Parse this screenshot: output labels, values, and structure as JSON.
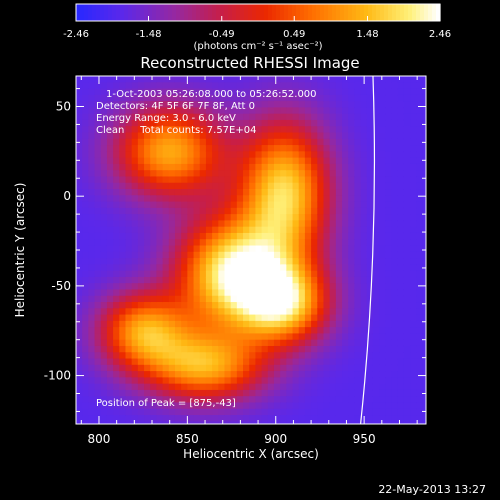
{
  "chart_data": {
    "type": "heatmap",
    "title": "Reconstructed RHESSI Image",
    "annotations": [
      "1-Oct-2003 05:26:08.000 to 05:26:52.000",
      "Detectors: 4F 5F 6F 7F 8F, Att 0",
      "Energy Range: 3.0 - 6.0 keV",
      "Clean     Total counts: 7.57E+04"
    ],
    "peak_label": "Position of Peak = [875,-43]",
    "peak": [
      875,
      -43
    ],
    "xlabel": "Heliocentric X (arcsec)",
    "ylabel": "Heliocentric Y (arcsec)",
    "xlim": [
      787,
      985
    ],
    "ylim": [
      -127,
      67
    ],
    "xticks": [
      800,
      850,
      900,
      950
    ],
    "yticks": [
      50,
      0,
      -50,
      -100
    ],
    "colorbar": {
      "range": [
        -2.46,
        2.46
      ],
      "ticks": [
        "-2.46",
        "-1.48",
        "-0.49",
        "0.49",
        "1.48",
        "2.46"
      ],
      "label": "(photons cm⁻² s⁻¹ asec⁻²)"
    },
    "sources": [
      {
        "x": 875,
        "y": -43,
        "amplitude": 1.5,
        "sigma_x": 22,
        "sigma_y": 22
      },
      {
        "x": 905,
        "y": 2,
        "amplitude": 1.15,
        "sigma_x": 18,
        "sigma_y": 28
      },
      {
        "x": 840,
        "y": 25,
        "amplitude": 0.7,
        "sigma_x": 22,
        "sigma_y": 18
      },
      {
        "x": 905,
        "y": -60,
        "amplitude": 0.8,
        "sigma_x": 18,
        "sigma_y": 16
      },
      {
        "x": 825,
        "y": -75,
        "amplitude": 0.5,
        "sigma_x": 18,
        "sigma_y": 15
      },
      {
        "x": 860,
        "y": -95,
        "amplitude": 0.6,
        "sigma_x": 24,
        "sigma_y": 14
      }
    ],
    "background": -1.9,
    "limb": {
      "x_at_top": 955,
      "x_at_bottom": 948
    }
  },
  "footer": {
    "date": "22-May-2013 13:27"
  }
}
